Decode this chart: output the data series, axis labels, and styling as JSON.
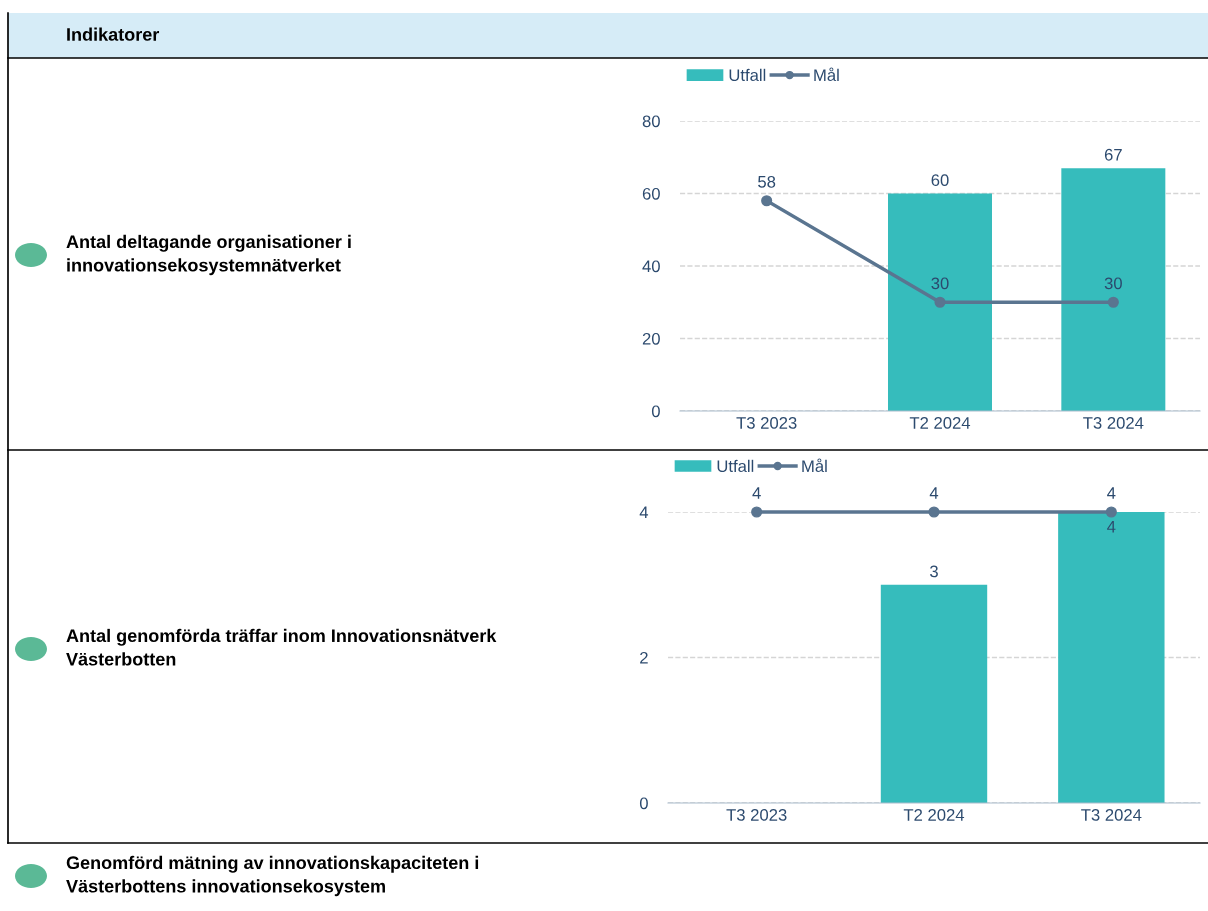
{
  "chart_data": [
    {
      "type": "other",
      "title": "Indikatorer",
      "annotations": [
        "Antal deltagande organisationer i\ninnovationsekosystemnätverket",
        "Antal genomförda träffar inom Innovationsnätverk\nVästerbotten",
        "Genomförd mätning av innovationskapaciteten i\nVästerbottens innovationsekosystem"
      ]
    },
    {
      "type": "bar",
      "categories": [
        "T3 2023",
        "T2 2024",
        "T3 2024"
      ],
      "series": [
        {
          "name": "Utfall",
          "type": "bar",
          "color": "#36bcbc",
          "values": [
            null,
            60,
            67
          ]
        },
        {
          "name": "Mål",
          "type": "line",
          "color": "#5a7590",
          "values": [
            58,
            30,
            30
          ]
        }
      ],
      "ylim": [
        0,
        80
      ],
      "yticks": [
        0,
        20,
        40,
        60,
        80
      ],
      "grid": "y",
      "legend": "top",
      "marker": "circle",
      "line_style": "solid",
      "data_labels": true
    },
    {
      "type": "bar",
      "categories": [
        "T3 2023",
        "T2 2024",
        "T3 2024"
      ],
      "series": [
        {
          "name": "Utfall",
          "type": "bar",
          "color": "#36bcbc",
          "values": [
            null,
            3,
            4
          ]
        },
        {
          "name": "Mål",
          "type": "line",
          "color": "#5a7590",
          "values": [
            4,
            4,
            4
          ]
        }
      ],
      "ylim": [
        0,
        4
      ],
      "yticks": [
        0,
        2,
        4
      ],
      "grid": "y",
      "legend": "top",
      "marker": "circle",
      "line_style": "solid",
      "data_labels": true
    }
  ]
}
